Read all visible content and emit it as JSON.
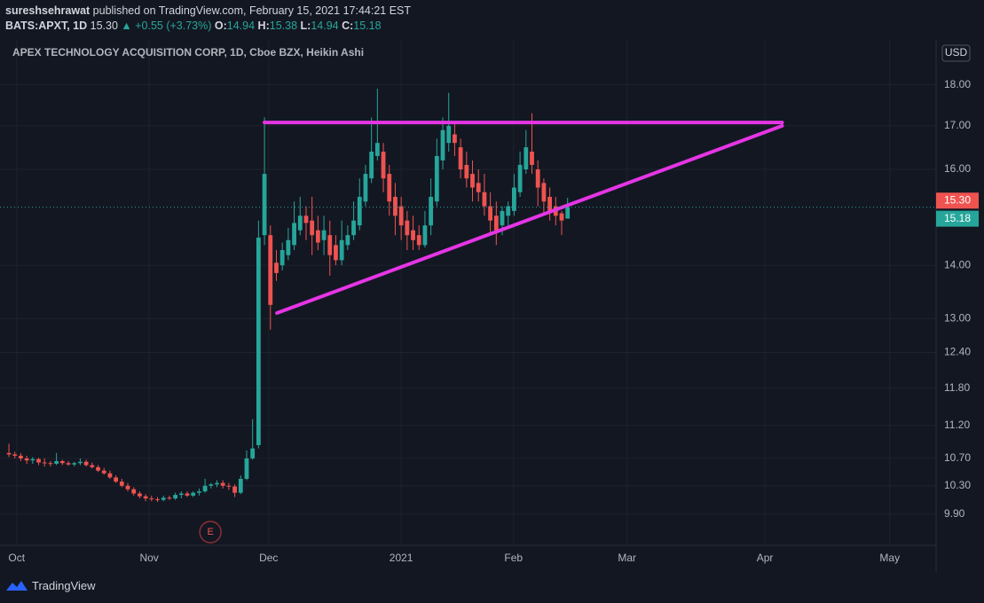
{
  "header": {
    "publisher": "sureshsehrawat",
    "published": "published on TradingView.com, February 15, 2021 17:44:21 EST",
    "symbol": "BATS:APXT, 1D",
    "change": "▲ +0.55 (+3.73%)",
    "open_label": "O:",
    "high_label": "H:",
    "low_label": "L:",
    "close_label": "C:"
  },
  "footer": {
    "brand": "TradingView"
  },
  "chart_data": {
    "type": "candlestick",
    "title": "APEX TECHNOLOGY ACQUISITION CORP, 1D, Cboe BZX, Heikin Ashi",
    "currency": "USD",
    "up_color": "#26a69a",
    "down_color": "#ef5350",
    "log_scale": true,
    "grid": true,
    "open": [
      10.78,
      10.76,
      10.74,
      10.7,
      10.67,
      10.69,
      10.64,
      10.63,
      10.62,
      10.66,
      10.63,
      10.61,
      10.63,
      10.65,
      10.6,
      10.57,
      10.52,
      10.48,
      10.42,
      10.36,
      10.3,
      10.25,
      10.19,
      10.15,
      10.12,
      10.11,
      10.1,
      10.13,
      10.12,
      10.17,
      10.19,
      10.16,
      10.2,
      10.22,
      10.3,
      10.32,
      10.34,
      10.3,
      10.29,
      10.2,
      10.4,
      10.7,
      10.9,
      14.6,
      14.6,
      14.05,
      14.0,
      14.2,
      14.4,
      14.7,
      15.0,
      14.9,
      14.7,
      14.5,
      14.6,
      14.4,
      14.1,
      14.4,
      14.6,
      14.8,
      15.3,
      15.8,
      16.3,
      16.4,
      15.9,
      15.4,
      15.2,
      14.9,
      14.7,
      14.6,
      14.4,
      14.8,
      15.3,
      16.2,
      16.6,
      16.8,
      16.5,
      16.1,
      15.9,
      15.7,
      15.5,
      15.2,
      15.0,
      14.8,
      15.0,
      15.1,
      15.5,
      16.0,
      16.4,
      16.0,
      15.7,
      15.4,
      15.2,
      15.05,
      14.94
    ],
    "high": [
      10.92,
      10.8,
      10.78,
      10.74,
      10.72,
      10.71,
      10.7,
      10.66,
      10.78,
      10.68,
      10.66,
      10.65,
      10.7,
      10.68,
      10.64,
      10.6,
      10.56,
      10.52,
      10.45,
      10.4,
      10.34,
      10.28,
      10.22,
      10.18,
      10.16,
      10.14,
      10.16,
      10.16,
      10.2,
      10.22,
      10.22,
      10.22,
      10.26,
      10.4,
      10.34,
      10.38,
      10.38,
      10.34,
      10.32,
      10.45,
      10.82,
      11.3,
      14.9,
      17.2,
      14.8,
      14.3,
      14.45,
      14.75,
      15.3,
      15.4,
      15.2,
      15.4,
      15.0,
      15.0,
      14.9,
      14.6,
      14.9,
      14.8,
      15.3,
      15.8,
      16.1,
      17.2,
      17.9,
      16.6,
      16.1,
      15.7,
      15.4,
      15.1,
      15.0,
      14.8,
      15.1,
      15.8,
      16.7,
      17.2,
      17.8,
      17.1,
      16.7,
      16.4,
      16.2,
      16.0,
      15.9,
      15.5,
      15.3,
      15.2,
      15.3,
      15.9,
      16.4,
      16.9,
      17.3,
      16.2,
      15.8,
      15.6,
      15.4,
      15.1,
      15.38
    ],
    "low": [
      10.72,
      10.7,
      10.66,
      10.62,
      10.62,
      10.6,
      10.58,
      10.58,
      10.6,
      10.6,
      10.59,
      10.58,
      10.6,
      10.58,
      10.55,
      10.5,
      10.46,
      10.4,
      10.34,
      10.28,
      10.22,
      10.16,
      10.12,
      10.08,
      10.08,
      10.07,
      10.08,
      10.1,
      10.1,
      10.12,
      10.14,
      10.14,
      10.16,
      10.2,
      10.26,
      10.28,
      10.26,
      10.24,
      10.14,
      10.18,
      10.38,
      10.68,
      10.85,
      14.4,
      12.8,
      13.7,
      13.9,
      14.1,
      14.3,
      14.6,
      14.5,
      14.2,
      14.3,
      14.2,
      13.8,
      14.0,
      14.0,
      14.3,
      14.5,
      14.7,
      15.2,
      15.7,
      16.2,
      15.5,
      15.0,
      14.6,
      14.5,
      14.3,
      14.3,
      14.3,
      14.35,
      14.6,
      15.2,
      16.0,
      16.4,
      16.3,
      15.8,
      15.6,
      15.3,
      15.3,
      15.0,
      14.6,
      14.4,
      14.6,
      14.8,
      15.0,
      15.4,
      15.9,
      15.9,
      15.2,
      15.0,
      14.9,
      14.8,
      14.6,
      14.94
    ],
    "close": [
      10.76,
      10.74,
      10.7,
      10.67,
      10.69,
      10.64,
      10.63,
      10.62,
      10.66,
      10.63,
      10.61,
      10.63,
      10.65,
      10.6,
      10.57,
      10.52,
      10.48,
      10.42,
      10.36,
      10.3,
      10.25,
      10.19,
      10.15,
      10.12,
      10.11,
      10.1,
      10.13,
      10.12,
      10.17,
      10.19,
      10.16,
      10.2,
      10.22,
      10.3,
      10.32,
      10.34,
      10.3,
      10.29,
      10.2,
      10.4,
      10.7,
      10.85,
      14.55,
      15.9,
      13.25,
      13.85,
      14.3,
      14.5,
      14.85,
      15.0,
      14.85,
      14.6,
      14.45,
      14.7,
      14.2,
      14.1,
      14.5,
      14.6,
      14.9,
      15.4,
      15.9,
      16.4,
      16.6,
      15.8,
      15.3,
      15.0,
      14.8,
      14.6,
      14.5,
      14.4,
      14.8,
      15.4,
      16.3,
      16.9,
      17.0,
      16.6,
      16.0,
      15.8,
      15.6,
      15.5,
      15.2,
      14.9,
      14.7,
      15.1,
      15.2,
      15.6,
      16.1,
      16.5,
      16.1,
      15.6,
      15.3,
      15.1,
      15.0,
      14.9,
      15.18
    ],
    "last_price": {
      "value": 15.3,
      "label": "15.30"
    },
    "xlim": [
      -1.5,
      156
    ],
    "xticks": [
      {
        "value": 1.3,
        "label": "Oct"
      },
      {
        "value": 23.6,
        "label": "Nov"
      },
      {
        "value": 43.7,
        "label": "Dec"
      },
      {
        "value": 66,
        "label": "2021"
      },
      {
        "value": 84.9,
        "label": "Feb"
      },
      {
        "value": 104,
        "label": "Mar"
      },
      {
        "value": 127.2,
        "label": "Apr"
      },
      {
        "value": 148.2,
        "label": "May"
      }
    ],
    "ylim": [
      9.48,
      19.16
    ],
    "yticks": [
      {
        "value": 9.9,
        "label": "9.90"
      },
      {
        "value": 10.3,
        "label": "10.30"
      },
      {
        "value": 10.7,
        "label": "10.70"
      },
      {
        "value": 11.2,
        "label": "11.20"
      },
      {
        "value": 11.8,
        "label": "11.80"
      },
      {
        "value": 12.4,
        "label": "12.40"
      },
      {
        "value": 13,
        "label": "13.00"
      },
      {
        "value": 14,
        "label": "14.00"
      },
      {
        "value": 16,
        "label": "16.00"
      },
      {
        "value": 17,
        "label": "17.00"
      },
      {
        "value": 18,
        "label": "18.00"
      }
    ],
    "trendlines": [
      {
        "color": "#e535e5",
        "x": [
          43,
          130.1
        ],
        "y": [
          17.08,
          17.08
        ]
      },
      {
        "color": "#e535e5",
        "x": [
          45.1,
          130.1
        ],
        "y": [
          13.1,
          17.0
        ]
      }
    ],
    "events": [
      {
        "x": 33.9,
        "label": "E"
      }
    ]
  }
}
